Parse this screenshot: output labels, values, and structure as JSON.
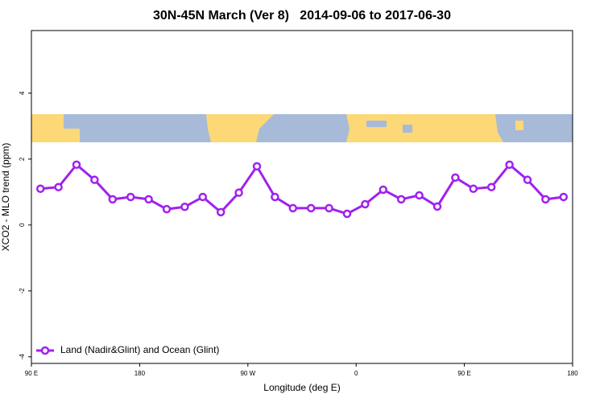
{
  "chart_data": {
    "type": "line",
    "title": "30N-45N March (Ver 8)   2014-09-06 to 2017-06-30",
    "x_label": "Longitude (deg E)",
    "y_label": "XCO2 - MLO trend (ppm)",
    "x": [
      97.5,
      112.5,
      127.5,
      142.5,
      157.5,
      172.5,
      187.5,
      202.5,
      217.5,
      232.5,
      247.5,
      262.5,
      277.5,
      292.5,
      307.5,
      322.5,
      337.5,
      352.5,
      367.5,
      382.5,
      397.5,
      412.5,
      427.5,
      442.5,
      457.5,
      472.5,
      487.5,
      502.5,
      517.5,
      532.5
    ],
    "series": [
      {
        "name": "Land (Nadir&Glint) and Ocean (Glint)",
        "color": "#a020f0",
        "values": [
          1.1,
          1.15,
          1.83,
          1.37,
          0.78,
          0.85,
          0.78,
          0.48,
          0.55,
          0.85,
          0.39,
          0.98,
          1.78,
          0.85,
          0.51,
          0.51,
          0.51,
          0.34,
          0.63,
          1.07,
          0.78,
          0.9,
          0.56,
          1.44,
          1.1,
          1.15,
          1.83,
          1.37,
          0.78,
          0.85
        ]
      }
    ],
    "xlim": [
      90,
      540
    ],
    "xticks": [
      {
        "value": 90,
        "label": "90 E"
      },
      180,
      {
        "value": 270,
        "label": "90 W"
      },
      {
        "value": 360,
        "label": "0"
      },
      {
        "value": 450,
        "label": "90 E"
      },
      {
        "value": 540,
        "label": "180"
      }
    ],
    "ylim": [
      -4.2,
      5.9
    ],
    "yticks": [
      -4,
      -2,
      0,
      2,
      4
    ],
    "legend": "bottom-left"
  }
}
